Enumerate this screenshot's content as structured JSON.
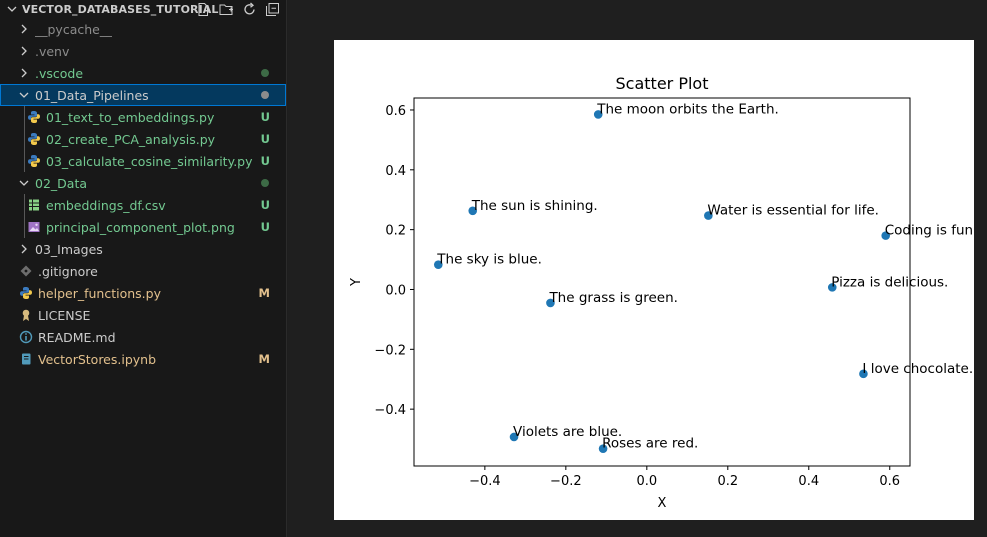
{
  "explorer": {
    "title": "VECTOR_DATABASES_TUTORIAL",
    "actions": [
      "new-file-icon",
      "new-folder-icon",
      "refresh-icon",
      "collapse-all-icon"
    ],
    "items": [
      {
        "label": "__pycache__",
        "type": "folder",
        "expanded": false,
        "depth": 0,
        "status": "",
        "color": "#8c8c8c"
      },
      {
        "label": ".venv",
        "type": "folder",
        "expanded": false,
        "depth": 0,
        "status": "",
        "color": "#8c8c8c"
      },
      {
        "label": ".vscode",
        "type": "folder",
        "expanded": false,
        "depth": 0,
        "status": "dot",
        "color": "#73c991"
      },
      {
        "label": "01_Data_Pipelines",
        "type": "folder",
        "expanded": true,
        "depth": 0,
        "status": "dot",
        "color": "#cccccc",
        "selected": true
      },
      {
        "label": "01_text_to_embeddings.py",
        "type": "python",
        "depth": 1,
        "status": "U",
        "color": "#73c991"
      },
      {
        "label": "02_create_PCA_analysis.py",
        "type": "python",
        "depth": 1,
        "status": "U",
        "color": "#73c991"
      },
      {
        "label": "03_calculate_cosine_similarity.py",
        "type": "python",
        "depth": 1,
        "status": "U",
        "color": "#73c991"
      },
      {
        "label": "02_Data",
        "type": "folder",
        "expanded": true,
        "depth": 0,
        "status": "dot",
        "color": "#73c991"
      },
      {
        "label": "embeddings_df.csv",
        "type": "csv",
        "depth": 1,
        "status": "U",
        "color": "#73c991"
      },
      {
        "label": "principal_component_plot.png",
        "type": "image",
        "depth": 1,
        "status": "U",
        "color": "#73c991"
      },
      {
        "label": "03_Images",
        "type": "folder",
        "expanded": false,
        "depth": 0,
        "status": "",
        "color": "#cccccc"
      },
      {
        "label": ".gitignore",
        "type": "gitignore",
        "depth": 0,
        "status": "",
        "color": "#cccccc"
      },
      {
        "label": "helper_functions.py",
        "type": "python",
        "depth": 0,
        "status": "M",
        "color": "#e2c08d"
      },
      {
        "label": "LICENSE",
        "type": "license",
        "depth": 0,
        "status": "",
        "color": "#cccccc"
      },
      {
        "label": "README.md",
        "type": "info",
        "depth": 0,
        "status": "",
        "color": "#cccccc"
      },
      {
        "label": "VectorStores.ipynb",
        "type": "notebook",
        "depth": 0,
        "status": "M",
        "color": "#e2c08d"
      }
    ]
  },
  "chart_data": {
    "type": "scatter",
    "title": "Scatter Plot",
    "xlabel": "X",
    "ylabel": "Y",
    "xlim": [
      -0.575,
      0.65
    ],
    "ylim": [
      -0.59,
      0.64
    ],
    "xticks": [
      "−0.4",
      "−0.2",
      "0.0",
      "0.2",
      "0.4",
      "0.6"
    ],
    "xtick_values": [
      -0.4,
      -0.2,
      0.0,
      0.2,
      0.4,
      0.6
    ],
    "yticks": [
      "−0.4",
      "−0.2",
      "0.0",
      "0.2",
      "0.4",
      "0.6"
    ],
    "ytick_values": [
      -0.4,
      -0.2,
      0.0,
      0.2,
      0.4,
      0.6
    ],
    "point_color": "#1f77b4",
    "points": [
      {
        "x": -0.12,
        "y": 0.585,
        "label": "The moon orbits the Earth."
      },
      {
        "x": -0.43,
        "y": 0.263,
        "label": "The sun is shining."
      },
      {
        "x": 0.152,
        "y": 0.247,
        "label": "Water is essential for life."
      },
      {
        "x": 0.59,
        "y": 0.18,
        "label": "Coding is fun."
      },
      {
        "x": -0.515,
        "y": 0.083,
        "label": "The sky is blue."
      },
      {
        "x": 0.458,
        "y": 0.007,
        "label": "Pizza is delicious."
      },
      {
        "x": -0.238,
        "y": -0.045,
        "label": "The grass is green."
      },
      {
        "x": 0.535,
        "y": -0.282,
        "label": "I love chocolate."
      },
      {
        "x": -0.328,
        "y": -0.493,
        "label": "Violets are blue."
      },
      {
        "x": -0.108,
        "y": -0.532,
        "label": "Roses are red."
      }
    ]
  }
}
